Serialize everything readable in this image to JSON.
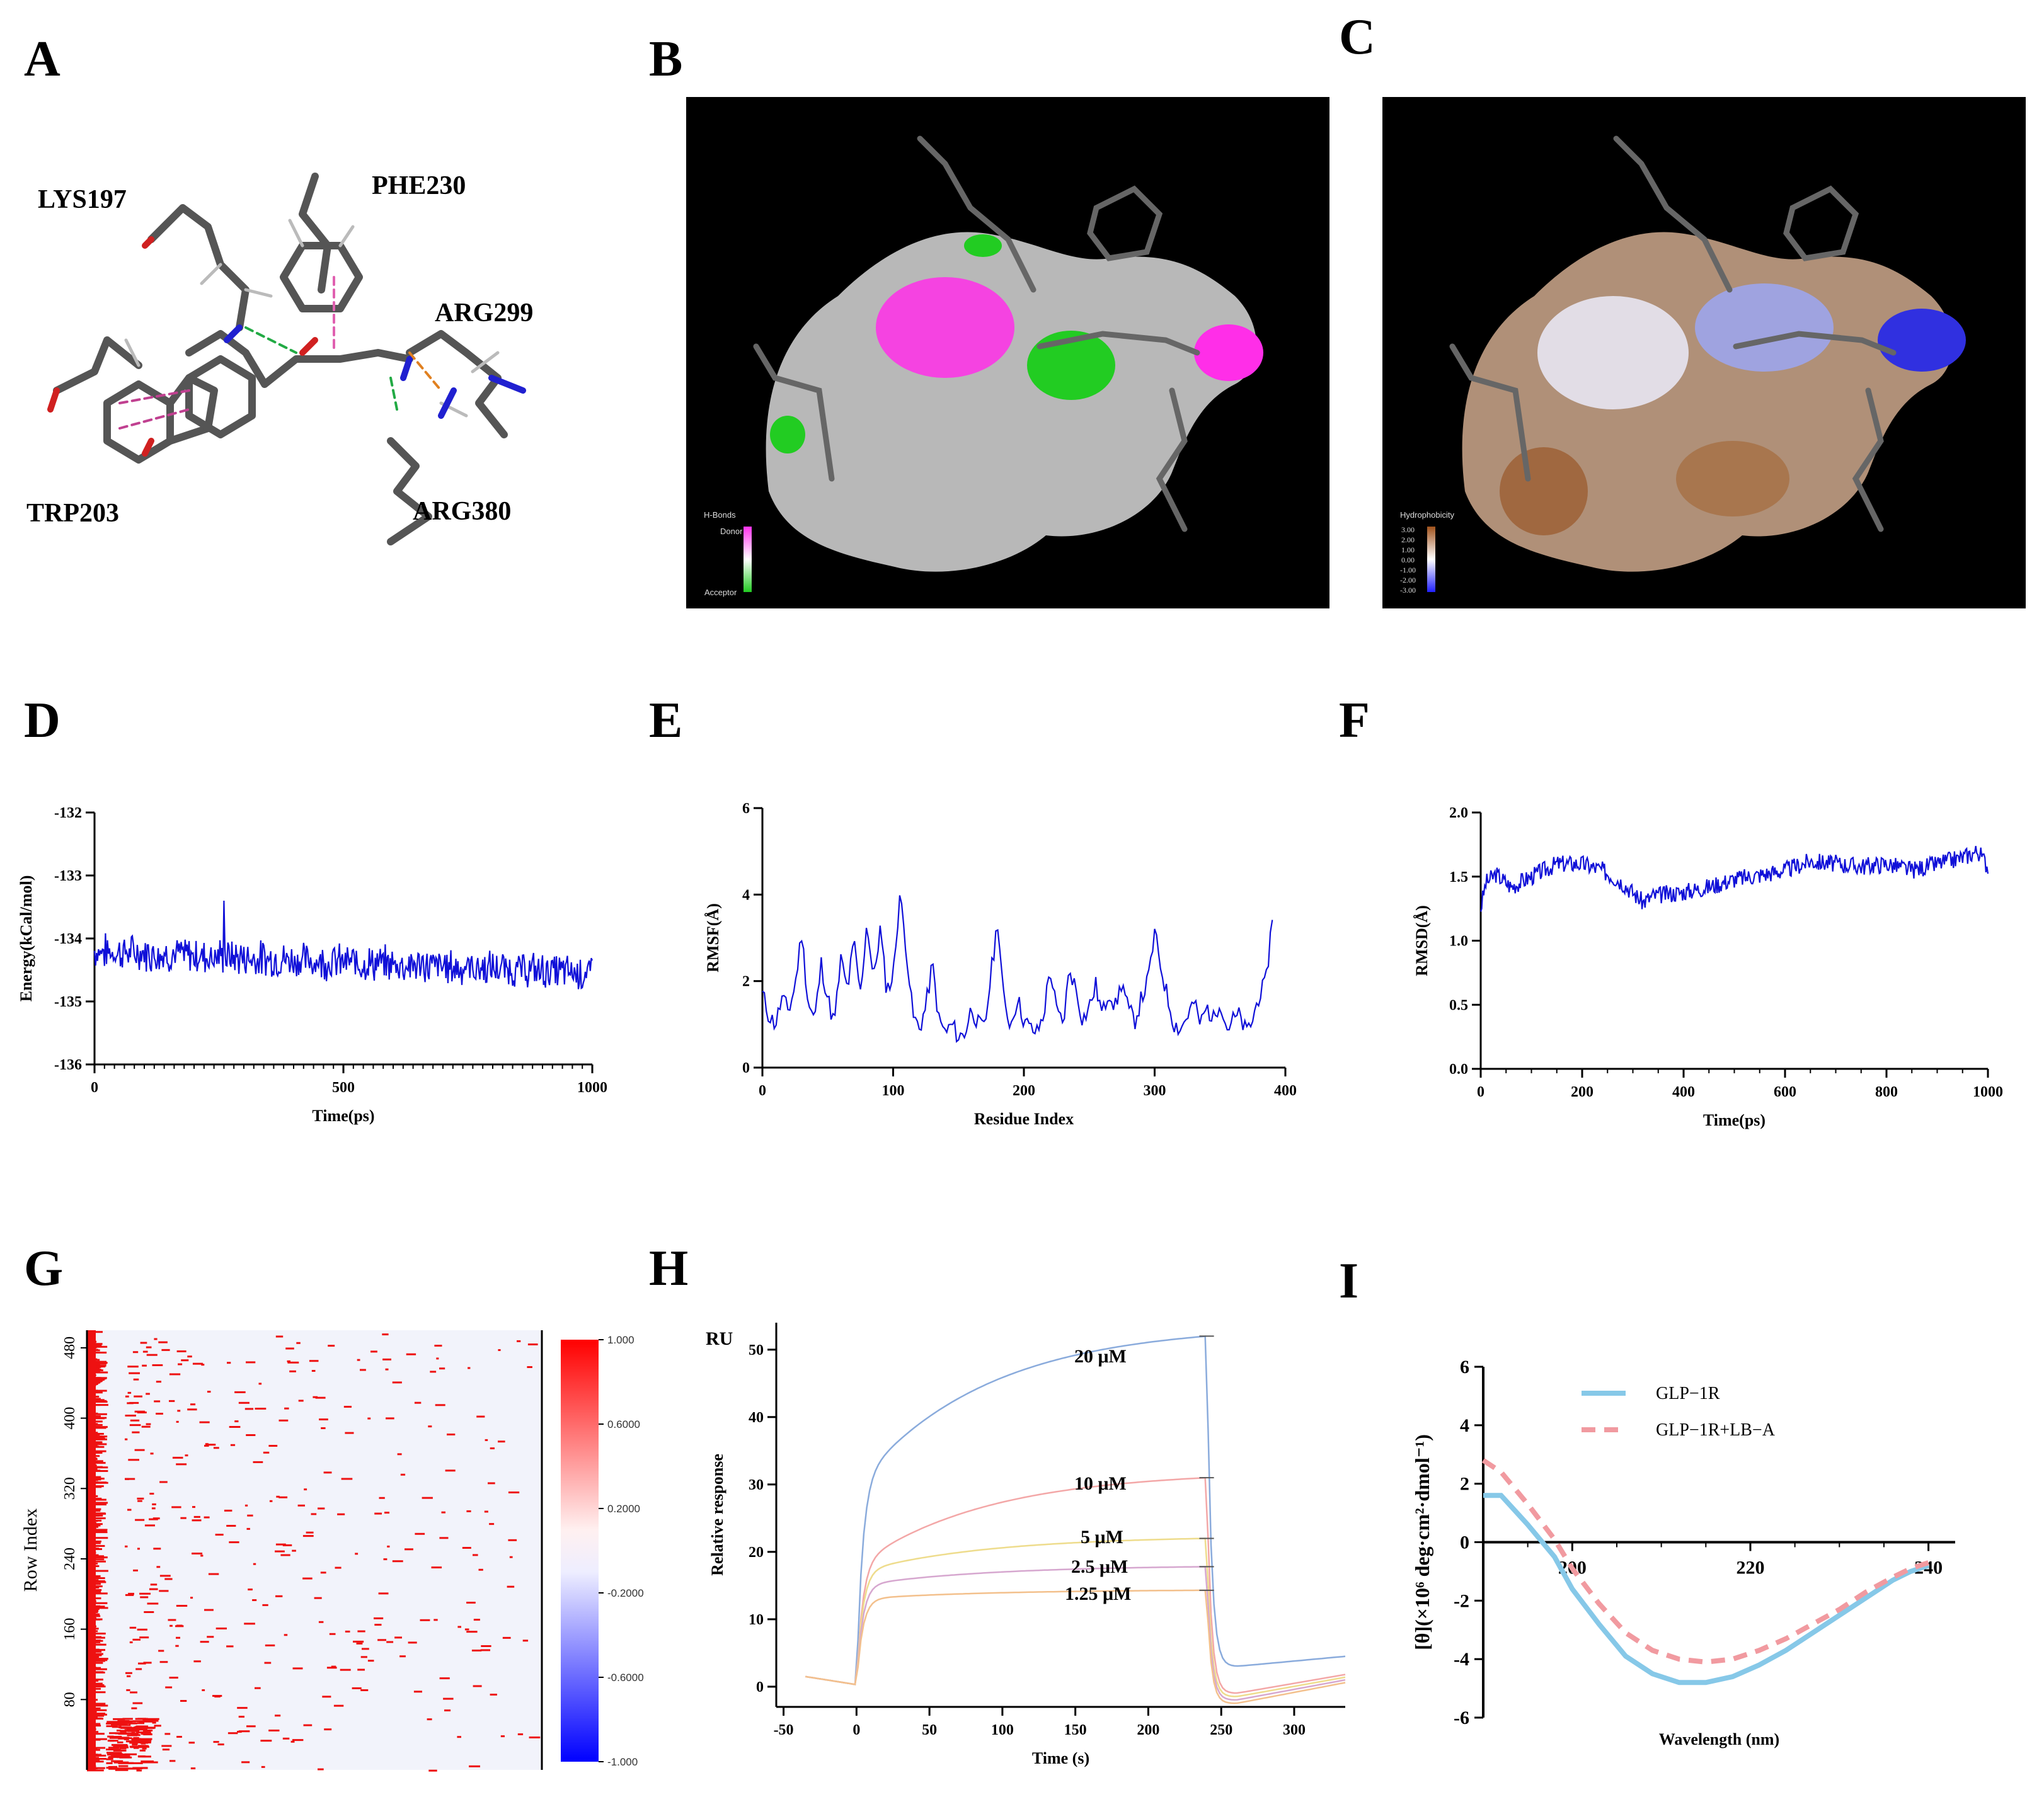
{
  "panels": [
    "A",
    "B",
    "C",
    "D",
    "E",
    "F",
    "G",
    "H",
    "I"
  ],
  "colors": {
    "blue": "#1010d8",
    "red": "#ee1111",
    "lightblue": "#86c8e8",
    "salmon": "#f19aa0",
    "bg": "#f2f3fb"
  },
  "panel_a": {
    "residues": [
      "LYS197",
      "PHE230",
      "ARG299",
      "TRP203",
      "ARG380"
    ]
  },
  "panel_b": {
    "legend_title": "H-Bonds",
    "legend_top": "Donor",
    "legend_bottom": "Acceptor"
  },
  "panel_c": {
    "legend_title": "Hydrophobicity",
    "legend_values": [
      "3.00",
      "2.00",
      "1.00",
      "0.00",
      "-1.00",
      "-2.00",
      "-3.00"
    ]
  },
  "chart_data": [
    {
      "id": "D",
      "type": "line",
      "xlabel": "Time(ps)",
      "ylabel": "Energy(kCal/mol)",
      "xlim": [
        0,
        1000
      ],
      "ylim": [
        -136,
        -132
      ],
      "xticks": [
        "0",
        "500",
        "1000"
      ],
      "yticks": [
        "-132",
        "-133",
        "-134",
        "-135",
        "-136"
      ],
      "series": [
        {
          "name": "Energy",
          "mean_start": -134.2,
          "mean_end": -134.55,
          "noise": 0.25,
          "n": 500,
          "peak": {
            "x": 260,
            "y": -133.4
          }
        }
      ]
    },
    {
      "id": "E",
      "type": "line",
      "xlabel": "Residue Index",
      "ylabel": "RMSF(Å)",
      "xlim": [
        0,
        400
      ],
      "ylim": [
        0,
        6
      ],
      "xticks": [
        "0",
        "100",
        "200",
        "300",
        "400"
      ],
      "yticks": [
        "0",
        "2",
        "4",
        "6"
      ],
      "series": [
        {
          "name": "RMSF",
          "x": [
            0,
            5,
            10,
            15,
            20,
            25,
            30,
            35,
            40,
            45,
            50,
            55,
            60,
            65,
            70,
            75,
            80,
            85,
            90,
            95,
            100,
            105,
            110,
            115,
            120,
            125,
            130,
            135,
            140,
            145,
            150,
            155,
            160,
            165,
            170,
            175,
            180,
            185,
            190,
            195,
            200,
            205,
            210,
            215,
            220,
            225,
            230,
            235,
            240,
            245,
            250,
            255,
            260,
            265,
            270,
            275,
            280,
            285,
            290,
            295,
            300,
            305,
            310,
            315,
            320,
            325,
            330,
            335,
            340,
            345,
            350,
            355,
            360,
            365,
            370,
            375,
            380,
            385,
            390
          ],
          "y": [
            1.7,
            1.2,
            1.0,
            1.6,
            1.3,
            1.9,
            3.1,
            1.5,
            1.1,
            2.4,
            1.6,
            1.0,
            2.5,
            1.8,
            2.9,
            1.7,
            3.4,
            2.0,
            3.2,
            1.8,
            2.1,
            4.0,
            2.8,
            1.2,
            0.9,
            1.4,
            2.4,
            1.1,
            0.8,
            1.0,
            0.7,
            0.8,
            1.4,
            1.0,
            0.9,
            2.2,
            3.4,
            1.4,
            1.0,
            1.6,
            1.1,
            0.9,
            0.8,
            1.2,
            2.3,
            1.3,
            1.0,
            2.3,
            1.8,
            1.1,
            1.4,
            1.9,
            1.2,
            1.8,
            1.4,
            2.0,
            1.3,
            1.1,
            1.6,
            2.0,
            3.1,
            2.3,
            1.6,
            1.0,
            0.9,
            1.2,
            1.5,
            1.0,
            1.4,
            1.1,
            1.6,
            0.9,
            1.1,
            1.2,
            0.8,
            1.1,
            1.7,
            1.9,
            3.5
          ]
        }
      ]
    },
    {
      "id": "F",
      "type": "line",
      "xlabel": "Time(ps)",
      "ylabel": "RMSD(Å)",
      "xlim": [
        0,
        1000
      ],
      "ylim": [
        0,
        2
      ],
      "xticks": [
        "0",
        "200",
        "400",
        "600",
        "800",
        "1000"
      ],
      "yticks": [
        "0.0",
        "0.5",
        "1.0",
        "1.5",
        "2.0"
      ],
      "series": [
        {
          "name": "RMSD",
          "x": [
            0,
            10,
            30,
            60,
            100,
            150,
            200,
            240,
            280,
            320,
            340,
            400,
            450,
            500,
            560,
            600,
            650,
            700,
            750,
            800,
            850,
            900,
            950,
            980,
            1000
          ],
          "y": [
            1.25,
            1.45,
            1.52,
            1.42,
            1.5,
            1.6,
            1.6,
            1.55,
            1.45,
            1.3,
            1.35,
            1.38,
            1.42,
            1.48,
            1.52,
            1.55,
            1.62,
            1.6,
            1.58,
            1.6,
            1.55,
            1.6,
            1.65,
            1.7,
            1.58
          ]
        }
      ]
    },
    {
      "id": "G",
      "type": "heatmap",
      "ylabel": "Row Index",
      "yticks": [
        "80",
        "160",
        "240",
        "320",
        "400",
        "480"
      ],
      "ylim": [
        0,
        500
      ],
      "colorbar_ticks": [
        "1.000",
        "0.6000",
        "0.2000",
        "-0.2000",
        "-0.6000",
        "-1.000"
      ]
    },
    {
      "id": "H",
      "type": "line",
      "xlabel": "Time (s)",
      "ylabel": "Relative response",
      "unit_label": "RU",
      "xlim": [
        -55,
        335
      ],
      "ylim": [
        -3,
        54
      ],
      "xticks": [
        "-50",
        "0",
        "50",
        "100",
        "150",
        "200",
        "250",
        "300"
      ],
      "yticks": [
        "0",
        "10",
        "20",
        "30",
        "40",
        "50"
      ],
      "series": [
        {
          "name": "20 μM",
          "label": "20 μM",
          "plateau": 52,
          "jump": 30,
          "end_dissoc": 4.5,
          "color": "#8aabdc"
        },
        {
          "name": "10 μM",
          "label": "10 μM",
          "plateau": 31,
          "jump": 18,
          "end_dissoc": 1.8,
          "color": "#f3a7a7"
        },
        {
          "name": "5 μM",
          "label": "5 μM",
          "plateau": 22,
          "jump": 17,
          "end_dissoc": 1.4,
          "color": "#eedc8c"
        },
        {
          "name": "2.5 μM",
          "label": "2.5 μM",
          "plateau": 17.8,
          "jump": 15,
          "end_dissoc": 1.0,
          "color": "#d6a7cf"
        },
        {
          "name": "1.25 μM",
          "label": "1.25 μM",
          "plateau": 14.3,
          "jump": 13,
          "end_dissoc": 0.6,
          "color": "#f3c08c"
        }
      ]
    },
    {
      "id": "I",
      "type": "line",
      "xlabel": "Wavelength (nm)",
      "ylabel": "[θ](×10⁶ deg·cm²·dmol⁻¹)",
      "xlim": [
        190,
        243
      ],
      "ylim": [
        -6,
        6
      ],
      "xticks": [
        "200",
        "220",
        "240"
      ],
      "yticks": [
        "6",
        "4",
        "2",
        "0",
        "-2",
        "-4",
        "-6"
      ],
      "series": [
        {
          "name": "GLP−1R",
          "x": [
            190,
            192,
            195,
            198,
            200,
            203,
            206,
            209,
            212,
            215,
            218,
            221,
            224,
            227,
            230,
            233,
            236,
            238,
            240
          ],
          "y": [
            1.6,
            1.6,
            0.6,
            -0.5,
            -1.6,
            -2.8,
            -3.9,
            -4.5,
            -4.8,
            -4.8,
            -4.6,
            -4.2,
            -3.7,
            -3.1,
            -2.5,
            -1.9,
            -1.3,
            -1.0,
            -0.8
          ]
        },
        {
          "name": "GLP−1R+LB−A",
          "x": [
            190,
            192,
            195,
            198,
            200,
            203,
            206,
            209,
            212,
            215,
            218,
            221,
            224,
            227,
            230,
            233,
            236,
            238,
            240
          ],
          "y": [
            2.8,
            2.4,
            1.3,
            0.1,
            -0.9,
            -2.1,
            -3.1,
            -3.7,
            -4.0,
            -4.1,
            -4.0,
            -3.7,
            -3.3,
            -2.8,
            -2.3,
            -1.7,
            -1.2,
            -0.9,
            -0.7
          ]
        }
      ]
    }
  ]
}
